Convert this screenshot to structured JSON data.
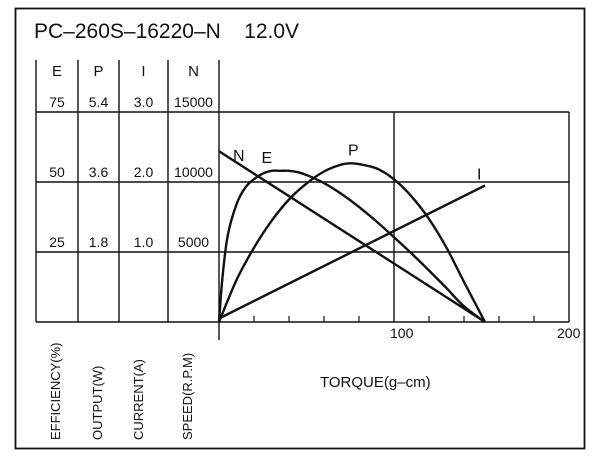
{
  "chart_data": {
    "type": "line",
    "title": "PC–260S–16220–N    12.0V",
    "xlabel": "TORQUE(g–cm)",
    "x_ticks": [
      "100",
      "200"
    ],
    "x_range": [
      0,
      200
    ],
    "scales": [
      {
        "key": "E",
        "header": "E",
        "unit_label": "EFFICIENCY(%)",
        "ticks": [
          "75",
          "50",
          "25"
        ]
      },
      {
        "key": "P",
        "header": "P",
        "unit_label": "OUTPUT(W)",
        "ticks": [
          "5.4",
          "3.6",
          "1.8"
        ]
      },
      {
        "key": "I",
        "header": "I",
        "unit_label": "CURRENT(A)",
        "ticks": [
          "3.0",
          "2.0",
          "1.0"
        ]
      },
      {
        "key": "N",
        "header": "N",
        "unit_label": "SPEED(R.P.M)",
        "ticks": [
          "15000",
          "10000",
          "5000"
        ]
      }
    ],
    "levels": [
      3,
      2,
      1
    ],
    "series": [
      {
        "name": "N",
        "label": "N",
        "scale": "N",
        "x": [
          0,
          152
        ],
        "y": [
          12200,
          0
        ]
      },
      {
        "name": "I",
        "label": "I",
        "scale": "I",
        "x": [
          0,
          152
        ],
        "y": [
          0.05,
          1.95
        ]
      },
      {
        "name": "P",
        "label": "P",
        "scale": "P",
        "x": [
          0,
          10,
          20,
          30,
          40,
          50,
          60,
          70,
          76,
          80,
          90,
          100,
          110,
          120,
          130,
          140,
          152
        ],
        "y": [
          0,
          1.08,
          1.91,
          2.6,
          3.15,
          3.56,
          3.87,
          4.05,
          4.08,
          4.06,
          3.95,
          3.67,
          3.23,
          2.65,
          1.91,
          1.03,
          0
        ]
      },
      {
        "name": "E",
        "label": "E",
        "scale": "E",
        "x": [
          0,
          2,
          5,
          10,
          15,
          20,
          25,
          30,
          35,
          40,
          45,
          50,
          60,
          70,
          80,
          90,
          100,
          110,
          120,
          130,
          140,
          152
        ],
        "y": [
          0,
          16,
          31,
          42,
          48,
          51,
          53,
          54,
          54,
          54,
          53.5,
          52.5,
          49.6,
          45.7,
          41.1,
          35.9,
          30.3,
          24.5,
          18.4,
          12.1,
          5.6,
          0
        ]
      }
    ]
  }
}
